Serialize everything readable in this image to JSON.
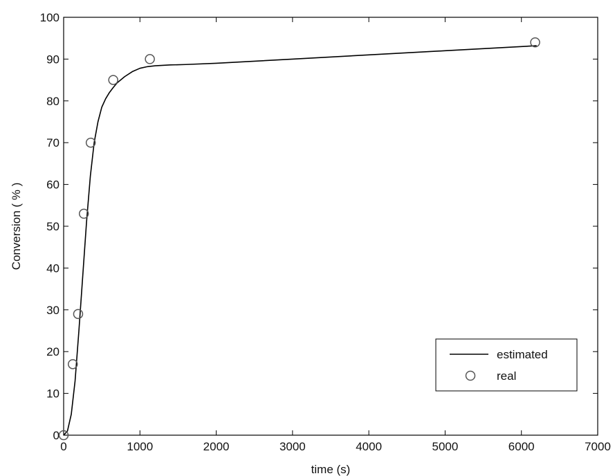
{
  "chart_data": {
    "type": "line",
    "title": "",
    "xlabel": "time (s)",
    "ylabel": "Conversion ( % )",
    "xlim": [
      0,
      7000
    ],
    "ylim": [
      0,
      100
    ],
    "xticks": [
      0,
      1000,
      2000,
      3000,
      4000,
      5000,
      6000,
      7000
    ],
    "yticks": [
      0,
      10,
      20,
      30,
      40,
      50,
      60,
      70,
      80,
      90,
      100
    ],
    "grid": false,
    "legend_position": "bottom-right",
    "series": [
      {
        "name": "estimated",
        "style": "line",
        "color": "#000000",
        "x": [
          0,
          50,
          100,
          150,
          200,
          250,
          300,
          350,
          400,
          450,
          500,
          550,
          600,
          650,
          700,
          800,
          900,
          1000,
          1100,
          1200,
          1400,
          1600,
          2000,
          3000,
          4000,
          5000,
          6000,
          6200
        ],
        "y": [
          0,
          1,
          5,
          13,
          25,
          38,
          51,
          62,
          70,
          75,
          78.5,
          80.5,
          82,
          83.2,
          84.3,
          85.8,
          87,
          87.8,
          88.2,
          88.4,
          88.6,
          88.7,
          89,
          90,
          91,
          92,
          93,
          93.2
        ]
      },
      {
        "name": "real",
        "style": "marker",
        "marker": "circle",
        "color": "#555555",
        "x": [
          0,
          120,
          190,
          265,
          355,
          650,
          1130,
          6180
        ],
        "y": [
          0,
          17,
          29,
          53,
          70,
          85,
          90,
          94
        ]
      }
    ]
  }
}
